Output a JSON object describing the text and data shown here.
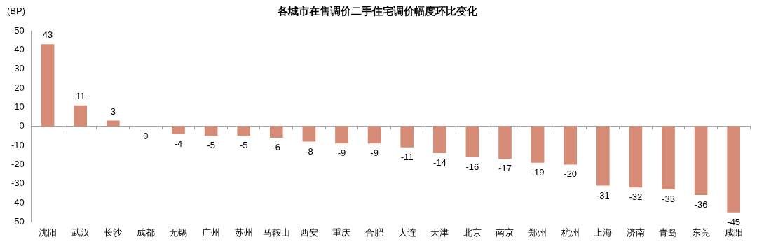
{
  "chart_data": {
    "type": "bar",
    "title": "各城市在售调价二手住宅调价幅度环比变化",
    "ylabel": "(BP)",
    "categories": [
      "沈阳",
      "武汉",
      "长沙",
      "成都",
      "无锡",
      "广州",
      "苏州",
      "马鞍山",
      "西安",
      "重庆",
      "合肥",
      "大连",
      "天津",
      "北京",
      "南京",
      "郑州",
      "杭州",
      "上海",
      "济南",
      "青岛",
      "东莞",
      "咸阳"
    ],
    "values": [
      43,
      11,
      3,
      0,
      -4,
      -5,
      -5,
      -6,
      -8,
      -9,
      -9,
      -11,
      -14,
      -16,
      -17,
      -19,
      -20,
      -31,
      -32,
      -33,
      -36,
      -45
    ],
    "color": "#d68b76",
    "ylim": [
      -50,
      50
    ],
    "yticks": [
      -50,
      -40,
      -30,
      -20,
      -10,
      0,
      10,
      20,
      30,
      40,
      50
    ],
    "legend": false,
    "data_labels": true
  }
}
